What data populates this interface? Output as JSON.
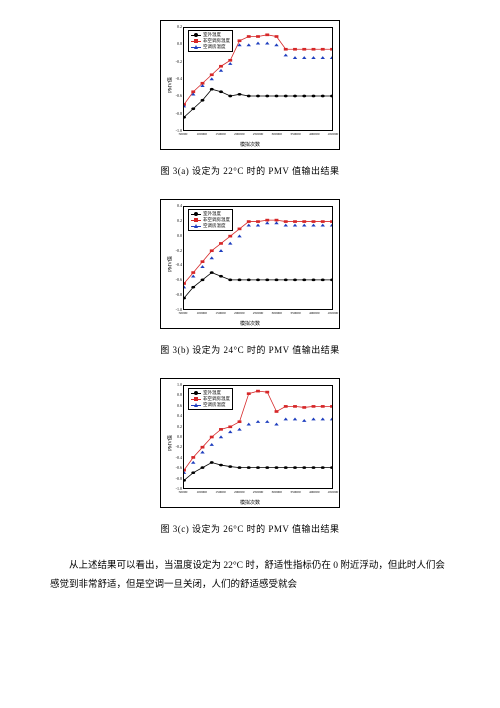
{
  "charts": [
    {
      "caption": "图 3(a) 设定为 22°C 时的 PMV 值输出结果",
      "ylabel": "PMV值",
      "xlabel": "模拟次数",
      "ylim": [
        -1.0,
        0.2
      ],
      "xlim": [
        50000,
        450000
      ],
      "yticks": [
        -1.0,
        -0.8,
        -0.6,
        -0.4,
        -0.2,
        0.0,
        0.2
      ],
      "xticks": [
        50000,
        100000,
        150000,
        200000,
        250000,
        300000,
        350000,
        400000,
        450000
      ],
      "legend": [
        {
          "label": "室外温度",
          "color": "#000000",
          "marker": "circle"
        },
        {
          "label": "非空调房温度",
          "color": "#d62728",
          "marker": "square"
        },
        {
          "label": "空调房温度",
          "color": "#1f3fbf",
          "marker": "triangle"
        }
      ],
      "series": [
        {
          "color": "#000000",
          "marker": "circle",
          "line": true,
          "data": [
            [
              50000,
              -0.85
            ],
            [
              75000,
              -0.75
            ],
            [
              100000,
              -0.65
            ],
            [
              125000,
              -0.52
            ],
            [
              150000,
              -0.55
            ],
            [
              175000,
              -0.6
            ],
            [
              200000,
              -0.58
            ],
            [
              225000,
              -0.6
            ],
            [
              250000,
              -0.6
            ],
            [
              275000,
              -0.6
            ],
            [
              300000,
              -0.6
            ],
            [
              325000,
              -0.6
            ],
            [
              350000,
              -0.6
            ],
            [
              375000,
              -0.6
            ],
            [
              400000,
              -0.6
            ],
            [
              425000,
              -0.6
            ],
            [
              450000,
              -0.6
            ]
          ]
        },
        {
          "color": "#d62728",
          "marker": "square",
          "line": true,
          "data": [
            [
              50000,
              -0.7
            ],
            [
              75000,
              -0.55
            ],
            [
              100000,
              -0.45
            ],
            [
              125000,
              -0.35
            ],
            [
              150000,
              -0.25
            ],
            [
              175000,
              -0.18
            ],
            [
              200000,
              0.05
            ],
            [
              225000,
              0.1
            ],
            [
              250000,
              0.1
            ],
            [
              275000,
              0.12
            ],
            [
              300000,
              0.1
            ],
            [
              325000,
              -0.05
            ],
            [
              350000,
              -0.05
            ],
            [
              375000,
              -0.05
            ],
            [
              400000,
              -0.05
            ],
            [
              425000,
              -0.05
            ],
            [
              450000,
              -0.05
            ]
          ]
        },
        {
          "color": "#1f3fbf",
          "marker": "triangle",
          "line": false,
          "data": [
            [
              50000,
              -0.72
            ],
            [
              75000,
              -0.58
            ],
            [
              100000,
              -0.48
            ],
            [
              125000,
              -0.4
            ],
            [
              150000,
              -0.3
            ],
            [
              175000,
              -0.22
            ],
            [
              200000,
              0.0
            ],
            [
              225000,
              0.0
            ],
            [
              250000,
              0.02
            ],
            [
              275000,
              0.02
            ],
            [
              300000,
              0.0
            ],
            [
              325000,
              -0.12
            ],
            [
              350000,
              -0.15
            ],
            [
              375000,
              -0.15
            ],
            [
              400000,
              -0.15
            ],
            [
              425000,
              -0.15
            ],
            [
              450000,
              -0.15
            ]
          ]
        }
      ]
    },
    {
      "caption": "图 3(b) 设定为 24°C 时的 PMV 值输出结果",
      "ylabel": "PMV值",
      "xlabel": "模拟次数",
      "ylim": [
        -1.0,
        0.4
      ],
      "xlim": [
        50000,
        450000
      ],
      "yticks": [
        -1.0,
        -0.8,
        -0.6,
        -0.4,
        -0.2,
        0.0,
        0.2,
        0.4
      ],
      "xticks": [
        50000,
        100000,
        150000,
        200000,
        250000,
        300000,
        350000,
        400000,
        450000
      ],
      "legend": [
        {
          "label": "室外温度",
          "color": "#000000",
          "marker": "circle"
        },
        {
          "label": "非空调房温度",
          "color": "#d62728",
          "marker": "square"
        },
        {
          "label": "空调房温度",
          "color": "#1f3fbf",
          "marker": "triangle"
        }
      ],
      "series": [
        {
          "color": "#000000",
          "marker": "circle",
          "line": true,
          "data": [
            [
              50000,
              -0.85
            ],
            [
              75000,
              -0.7
            ],
            [
              100000,
              -0.6
            ],
            [
              125000,
              -0.5
            ],
            [
              150000,
              -0.55
            ],
            [
              175000,
              -0.6
            ],
            [
              200000,
              -0.6
            ],
            [
              225000,
              -0.6
            ],
            [
              250000,
              -0.6
            ],
            [
              275000,
              -0.6
            ],
            [
              300000,
              -0.6
            ],
            [
              325000,
              -0.6
            ],
            [
              350000,
              -0.6
            ],
            [
              375000,
              -0.6
            ],
            [
              400000,
              -0.6
            ],
            [
              425000,
              -0.6
            ],
            [
              450000,
              -0.6
            ]
          ]
        },
        {
          "color": "#d62728",
          "marker": "square",
          "line": true,
          "data": [
            [
              50000,
              -0.65
            ],
            [
              75000,
              -0.5
            ],
            [
              100000,
              -0.35
            ],
            [
              125000,
              -0.2
            ],
            [
              150000,
              -0.1
            ],
            [
              175000,
              0.0
            ],
            [
              200000,
              0.1
            ],
            [
              225000,
              0.2
            ],
            [
              250000,
              0.2
            ],
            [
              275000,
              0.22
            ],
            [
              300000,
              0.22
            ],
            [
              325000,
              0.2
            ],
            [
              350000,
              0.2
            ],
            [
              375000,
              0.2
            ],
            [
              400000,
              0.2
            ],
            [
              425000,
              0.2
            ],
            [
              450000,
              0.2
            ]
          ]
        },
        {
          "color": "#1f3fbf",
          "marker": "triangle",
          "line": false,
          "data": [
            [
              50000,
              -0.7
            ],
            [
              75000,
              -0.55
            ],
            [
              100000,
              -0.42
            ],
            [
              125000,
              -0.3
            ],
            [
              150000,
              -0.2
            ],
            [
              175000,
              -0.1
            ],
            [
              200000,
              0.0
            ],
            [
              225000,
              0.15
            ],
            [
              250000,
              0.15
            ],
            [
              275000,
              0.18
            ],
            [
              300000,
              0.18
            ],
            [
              325000,
              0.15
            ],
            [
              350000,
              0.15
            ],
            [
              375000,
              0.15
            ],
            [
              400000,
              0.15
            ],
            [
              425000,
              0.15
            ],
            [
              450000,
              0.15
            ]
          ]
        }
      ]
    },
    {
      "caption": "图 3(c) 设定为 26°C 时的 PMV 值输出结果",
      "ylabel": "PMV值",
      "xlabel": "模拟次数",
      "ylim": [
        -1.0,
        1.0
      ],
      "xlim": [
        50000,
        450000
      ],
      "yticks": [
        -1.0,
        -0.8,
        -0.6,
        -0.4,
        -0.2,
        0.0,
        0.2,
        0.4,
        0.6,
        0.8,
        1.0
      ],
      "xticks": [
        50000,
        100000,
        150000,
        200000,
        250000,
        300000,
        350000,
        400000,
        450000
      ],
      "legend": [
        {
          "label": "室外温度",
          "color": "#000000",
          "marker": "circle"
        },
        {
          "label": "非空调房温度",
          "color": "#d62728",
          "marker": "square"
        },
        {
          "label": "空调房温度",
          "color": "#1f3fbf",
          "marker": "triangle"
        }
      ],
      "series": [
        {
          "color": "#000000",
          "marker": "circle",
          "line": true,
          "data": [
            [
              50000,
              -0.85
            ],
            [
              75000,
              -0.7
            ],
            [
              100000,
              -0.6
            ],
            [
              125000,
              -0.5
            ],
            [
              150000,
              -0.55
            ],
            [
              175000,
              -0.58
            ],
            [
              200000,
              -0.6
            ],
            [
              225000,
              -0.6
            ],
            [
              250000,
              -0.6
            ],
            [
              275000,
              -0.6
            ],
            [
              300000,
              -0.6
            ],
            [
              325000,
              -0.6
            ],
            [
              350000,
              -0.6
            ],
            [
              375000,
              -0.6
            ],
            [
              400000,
              -0.6
            ],
            [
              425000,
              -0.6
            ],
            [
              450000,
              -0.6
            ]
          ]
        },
        {
          "color": "#d62728",
          "marker": "square",
          "line": true,
          "data": [
            [
              50000,
              -0.65
            ],
            [
              75000,
              -0.4
            ],
            [
              100000,
              -0.2
            ],
            [
              125000,
              0.0
            ],
            [
              150000,
              0.15
            ],
            [
              175000,
              0.2
            ],
            [
              200000,
              0.3
            ],
            [
              225000,
              0.85
            ],
            [
              250000,
              0.9
            ],
            [
              275000,
              0.88
            ],
            [
              300000,
              0.5
            ],
            [
              325000,
              0.6
            ],
            [
              350000,
              0.6
            ],
            [
              375000,
              0.58
            ],
            [
              400000,
              0.6
            ],
            [
              425000,
              0.6
            ],
            [
              450000,
              0.6
            ]
          ]
        },
        {
          "color": "#1f3fbf",
          "marker": "triangle",
          "line": false,
          "data": [
            [
              50000,
              -0.7
            ],
            [
              75000,
              -0.5
            ],
            [
              100000,
              -0.3
            ],
            [
              125000,
              -0.15
            ],
            [
              150000,
              0.0
            ],
            [
              175000,
              0.1
            ],
            [
              200000,
              0.15
            ],
            [
              225000,
              0.25
            ],
            [
              250000,
              0.3
            ],
            [
              275000,
              0.3
            ],
            [
              300000,
              0.25
            ],
            [
              325000,
              0.35
            ],
            [
              350000,
              0.35
            ],
            [
              375000,
              0.32
            ],
            [
              400000,
              0.35
            ],
            [
              425000,
              0.35
            ],
            [
              450000,
              0.35
            ]
          ]
        }
      ]
    }
  ],
  "body_paragraph": "从上述结果可以看出，当温度设定为 22°C 时，舒适性指标仍在 0 附近浮动，但此时人们会感觉到非常舒适，但是空调一旦关闭，人们的舒适感受就会",
  "colors": {
    "background": "#ffffff",
    "text": "#000000",
    "series_black": "#000000",
    "series_red": "#d62728",
    "series_blue": "#1f3fbf"
  }
}
